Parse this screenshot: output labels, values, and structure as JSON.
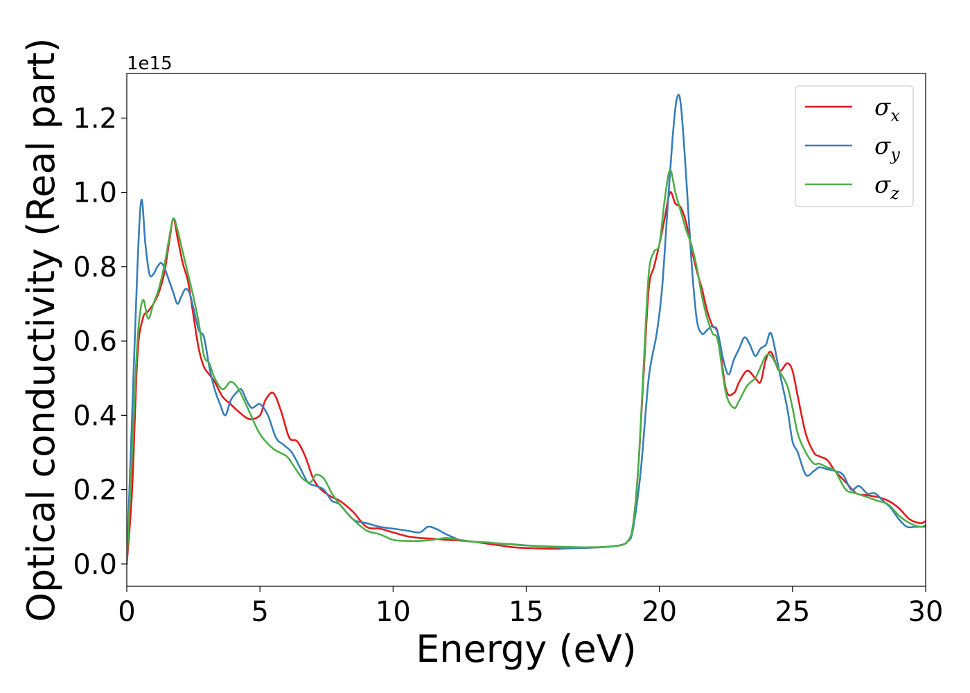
{
  "chart_data": {
    "type": "line",
    "title": "",
    "xlabel": "Energy (eV)",
    "ylabel": "Optical conductivity (Real part)",
    "y_offset_label": "1e15",
    "xlim": [
      0,
      30
    ],
    "ylim": [
      -0.06,
      1.32
    ],
    "xticks": [
      0,
      5,
      10,
      15,
      20,
      25,
      30
    ],
    "xtick_labels": [
      "0",
      "5",
      "10",
      "15",
      "20",
      "25",
      "30"
    ],
    "yticks": [
      0.0,
      0.2,
      0.4,
      0.6,
      0.8,
      1.0,
      1.2
    ],
    "ytick_labels": [
      "0.0",
      "0.2",
      "0.4",
      "0.6",
      "0.8",
      "1.0",
      "1.2"
    ],
    "grid": false,
    "legend_position": "top-right",
    "series": [
      {
        "name": "σx",
        "symbol": "σ",
        "subscript": "x",
        "color": "#e41a1c",
        "x": [
          0,
          0.2,
          0.4,
          0.6,
          0.8,
          1.0,
          1.2,
          1.4,
          1.6,
          1.75,
          1.9,
          2.1,
          2.3,
          2.5,
          2.7,
          2.9,
          3.1,
          3.3,
          3.6,
          3.9,
          4.2,
          4.6,
          5.0,
          5.2,
          5.5,
          5.8,
          6.1,
          6.4,
          6.7,
          7.0,
          7.3,
          7.7,
          8.0,
          8.5,
          9.0,
          9.5,
          10.0,
          10.5,
          11.0,
          11.5,
          12.0,
          12.5,
          13.0,
          13.5,
          14.0,
          14.5,
          15.0,
          15.5,
          16.0,
          16.5,
          17.0,
          17.5,
          18.0,
          18.5,
          18.8,
          19.0,
          19.2,
          19.4,
          19.6,
          19.8,
          20.0,
          20.2,
          20.4,
          20.6,
          20.8,
          21.0,
          21.2,
          21.4,
          21.6,
          21.8,
          22.0,
          22.2,
          22.5,
          22.8,
          23.0,
          23.3,
          23.6,
          23.8,
          24.0,
          24.2,
          24.5,
          24.8,
          25.0,
          25.2,
          25.5,
          25.8,
          26.0,
          26.3,
          26.6,
          27.0,
          27.4,
          27.8,
          28.2,
          28.6,
          29.0,
          29.4,
          29.8,
          30.0
        ],
        "values": [
          0.0,
          0.2,
          0.56,
          0.66,
          0.68,
          0.7,
          0.73,
          0.78,
          0.87,
          0.93,
          0.88,
          0.81,
          0.76,
          0.67,
          0.58,
          0.53,
          0.51,
          0.49,
          0.45,
          0.43,
          0.41,
          0.39,
          0.4,
          0.44,
          0.46,
          0.41,
          0.34,
          0.33,
          0.29,
          0.23,
          0.2,
          0.18,
          0.17,
          0.14,
          0.1,
          0.095,
          0.085,
          0.075,
          0.07,
          0.068,
          0.065,
          0.063,
          0.06,
          0.055,
          0.05,
          0.045,
          0.043,
          0.042,
          0.041,
          0.042,
          0.043,
          0.044,
          0.046,
          0.05,
          0.06,
          0.1,
          0.25,
          0.5,
          0.74,
          0.8,
          0.86,
          0.93,
          1.0,
          0.97,
          0.96,
          0.92,
          0.85,
          0.79,
          0.74,
          0.68,
          0.64,
          0.62,
          0.47,
          0.46,
          0.49,
          0.52,
          0.5,
          0.49,
          0.55,
          0.57,
          0.52,
          0.54,
          0.52,
          0.45,
          0.35,
          0.3,
          0.29,
          0.28,
          0.25,
          0.22,
          0.19,
          0.185,
          0.18,
          0.17,
          0.15,
          0.12,
          0.11,
          0.115
        ]
      },
      {
        "name": "σy",
        "symbol": "σ",
        "subscript": "y",
        "color": "#377eb8",
        "x": [
          0,
          0.2,
          0.4,
          0.55,
          0.7,
          0.85,
          1.0,
          1.15,
          1.3,
          1.45,
          1.6,
          1.75,
          1.9,
          2.05,
          2.2,
          2.35,
          2.5,
          2.7,
          2.9,
          3.1,
          3.3,
          3.5,
          3.7,
          3.9,
          4.1,
          4.3,
          4.5,
          4.7,
          5.0,
          5.3,
          5.6,
          5.9,
          6.2,
          6.5,
          6.8,
          7.1,
          7.4,
          7.7,
          8.0,
          8.5,
          9.0,
          9.5,
          10.0,
          10.5,
          11.0,
          11.3,
          11.6,
          12.0,
          12.5,
          13.0,
          13.5,
          14.0,
          14.5,
          15.0,
          15.5,
          16.0,
          16.5,
          17.0,
          17.5,
          18.0,
          18.5,
          18.8,
          19.0,
          19.3,
          19.6,
          19.9,
          20.1,
          20.3,
          20.5,
          20.65,
          20.8,
          21.0,
          21.2,
          21.4,
          21.6,
          21.8,
          22.0,
          22.2,
          22.4,
          22.6,
          22.8,
          23.0,
          23.2,
          23.4,
          23.6,
          23.8,
          24.0,
          24.2,
          24.5,
          24.8,
          25.0,
          25.2,
          25.5,
          25.8,
          26.0,
          26.3,
          26.6,
          26.9,
          27.2,
          27.5,
          27.8,
          28.1,
          28.4,
          28.7,
          29.0,
          29.3,
          29.6,
          30.0
        ],
        "values": [
          0.0,
          0.4,
          0.8,
          0.98,
          0.86,
          0.78,
          0.78,
          0.8,
          0.81,
          0.79,
          0.76,
          0.73,
          0.7,
          0.72,
          0.74,
          0.73,
          0.69,
          0.63,
          0.61,
          0.53,
          0.47,
          0.43,
          0.4,
          0.44,
          0.46,
          0.47,
          0.44,
          0.42,
          0.43,
          0.4,
          0.34,
          0.32,
          0.3,
          0.26,
          0.22,
          0.21,
          0.2,
          0.17,
          0.16,
          0.12,
          0.11,
          0.1,
          0.095,
          0.09,
          0.085,
          0.1,
          0.095,
          0.08,
          0.065,
          0.06,
          0.058,
          0.055,
          0.053,
          0.05,
          0.048,
          0.045,
          0.043,
          0.043,
          0.044,
          0.046,
          0.05,
          0.06,
          0.09,
          0.25,
          0.5,
          0.62,
          0.74,
          0.95,
          1.15,
          1.25,
          1.24,
          1.05,
          0.82,
          0.66,
          0.62,
          0.63,
          0.64,
          0.62,
          0.55,
          0.51,
          0.55,
          0.58,
          0.61,
          0.59,
          0.56,
          0.58,
          0.59,
          0.62,
          0.52,
          0.42,
          0.33,
          0.3,
          0.24,
          0.25,
          0.26,
          0.255,
          0.25,
          0.24,
          0.2,
          0.21,
          0.19,
          0.19,
          0.17,
          0.15,
          0.12,
          0.1,
          0.1,
          0.1
        ]
      },
      {
        "name": "σz",
        "symbol": "σ",
        "subscript": "z",
        "color": "#4daf4a",
        "x": [
          0,
          0.2,
          0.4,
          0.6,
          0.8,
          1.0,
          1.2,
          1.4,
          1.6,
          1.75,
          1.9,
          2.1,
          2.3,
          2.5,
          2.7,
          2.9,
          3.1,
          3.3,
          3.6,
          3.9,
          4.2,
          4.6,
          5.0,
          5.5,
          6.0,
          6.3,
          6.6,
          6.9,
          7.1,
          7.4,
          7.7,
          8.0,
          8.5,
          9.0,
          9.5,
          10.0,
          10.5,
          11.0,
          11.5,
          12.0,
          12.5,
          13.0,
          13.5,
          14.0,
          14.5,
          15.0,
          15.5,
          16.0,
          16.5,
          17.0,
          17.5,
          18.0,
          18.5,
          18.8,
          19.0,
          19.2,
          19.4,
          19.6,
          19.8,
          20.0,
          20.2,
          20.4,
          20.6,
          20.8,
          21.0,
          21.2,
          21.4,
          21.6,
          21.8,
          22.0,
          22.2,
          22.5,
          22.8,
          23.0,
          23.3,
          23.6,
          23.8,
          24.0,
          24.2,
          24.5,
          24.8,
          25.0,
          25.2,
          25.5,
          25.8,
          26.0,
          26.3,
          26.6,
          27.0,
          27.4,
          27.8,
          28.2,
          28.6,
          29.0,
          29.4,
          29.8,
          30.0
        ],
        "values": [
          0.0,
          0.3,
          0.6,
          0.71,
          0.66,
          0.7,
          0.74,
          0.8,
          0.88,
          0.93,
          0.9,
          0.84,
          0.78,
          0.72,
          0.65,
          0.56,
          0.54,
          0.5,
          0.47,
          0.49,
          0.47,
          0.41,
          0.35,
          0.31,
          0.29,
          0.26,
          0.23,
          0.22,
          0.24,
          0.23,
          0.19,
          0.16,
          0.12,
          0.09,
          0.08,
          0.065,
          0.062,
          0.062,
          0.065,
          0.07,
          0.065,
          0.06,
          0.058,
          0.055,
          0.052,
          0.05,
          0.048,
          0.047,
          0.046,
          0.045,
          0.045,
          0.046,
          0.05,
          0.06,
          0.1,
          0.25,
          0.52,
          0.78,
          0.84,
          0.86,
          0.98,
          1.06,
          1.0,
          0.95,
          0.9,
          0.86,
          0.8,
          0.72,
          0.66,
          0.62,
          0.6,
          0.46,
          0.42,
          0.44,
          0.48,
          0.5,
          0.53,
          0.56,
          0.56,
          0.52,
          0.48,
          0.42,
          0.35,
          0.3,
          0.27,
          0.27,
          0.26,
          0.25,
          0.2,
          0.19,
          0.18,
          0.17,
          0.16,
          0.13,
          0.11,
          0.1,
          0.105
        ]
      }
    ]
  }
}
